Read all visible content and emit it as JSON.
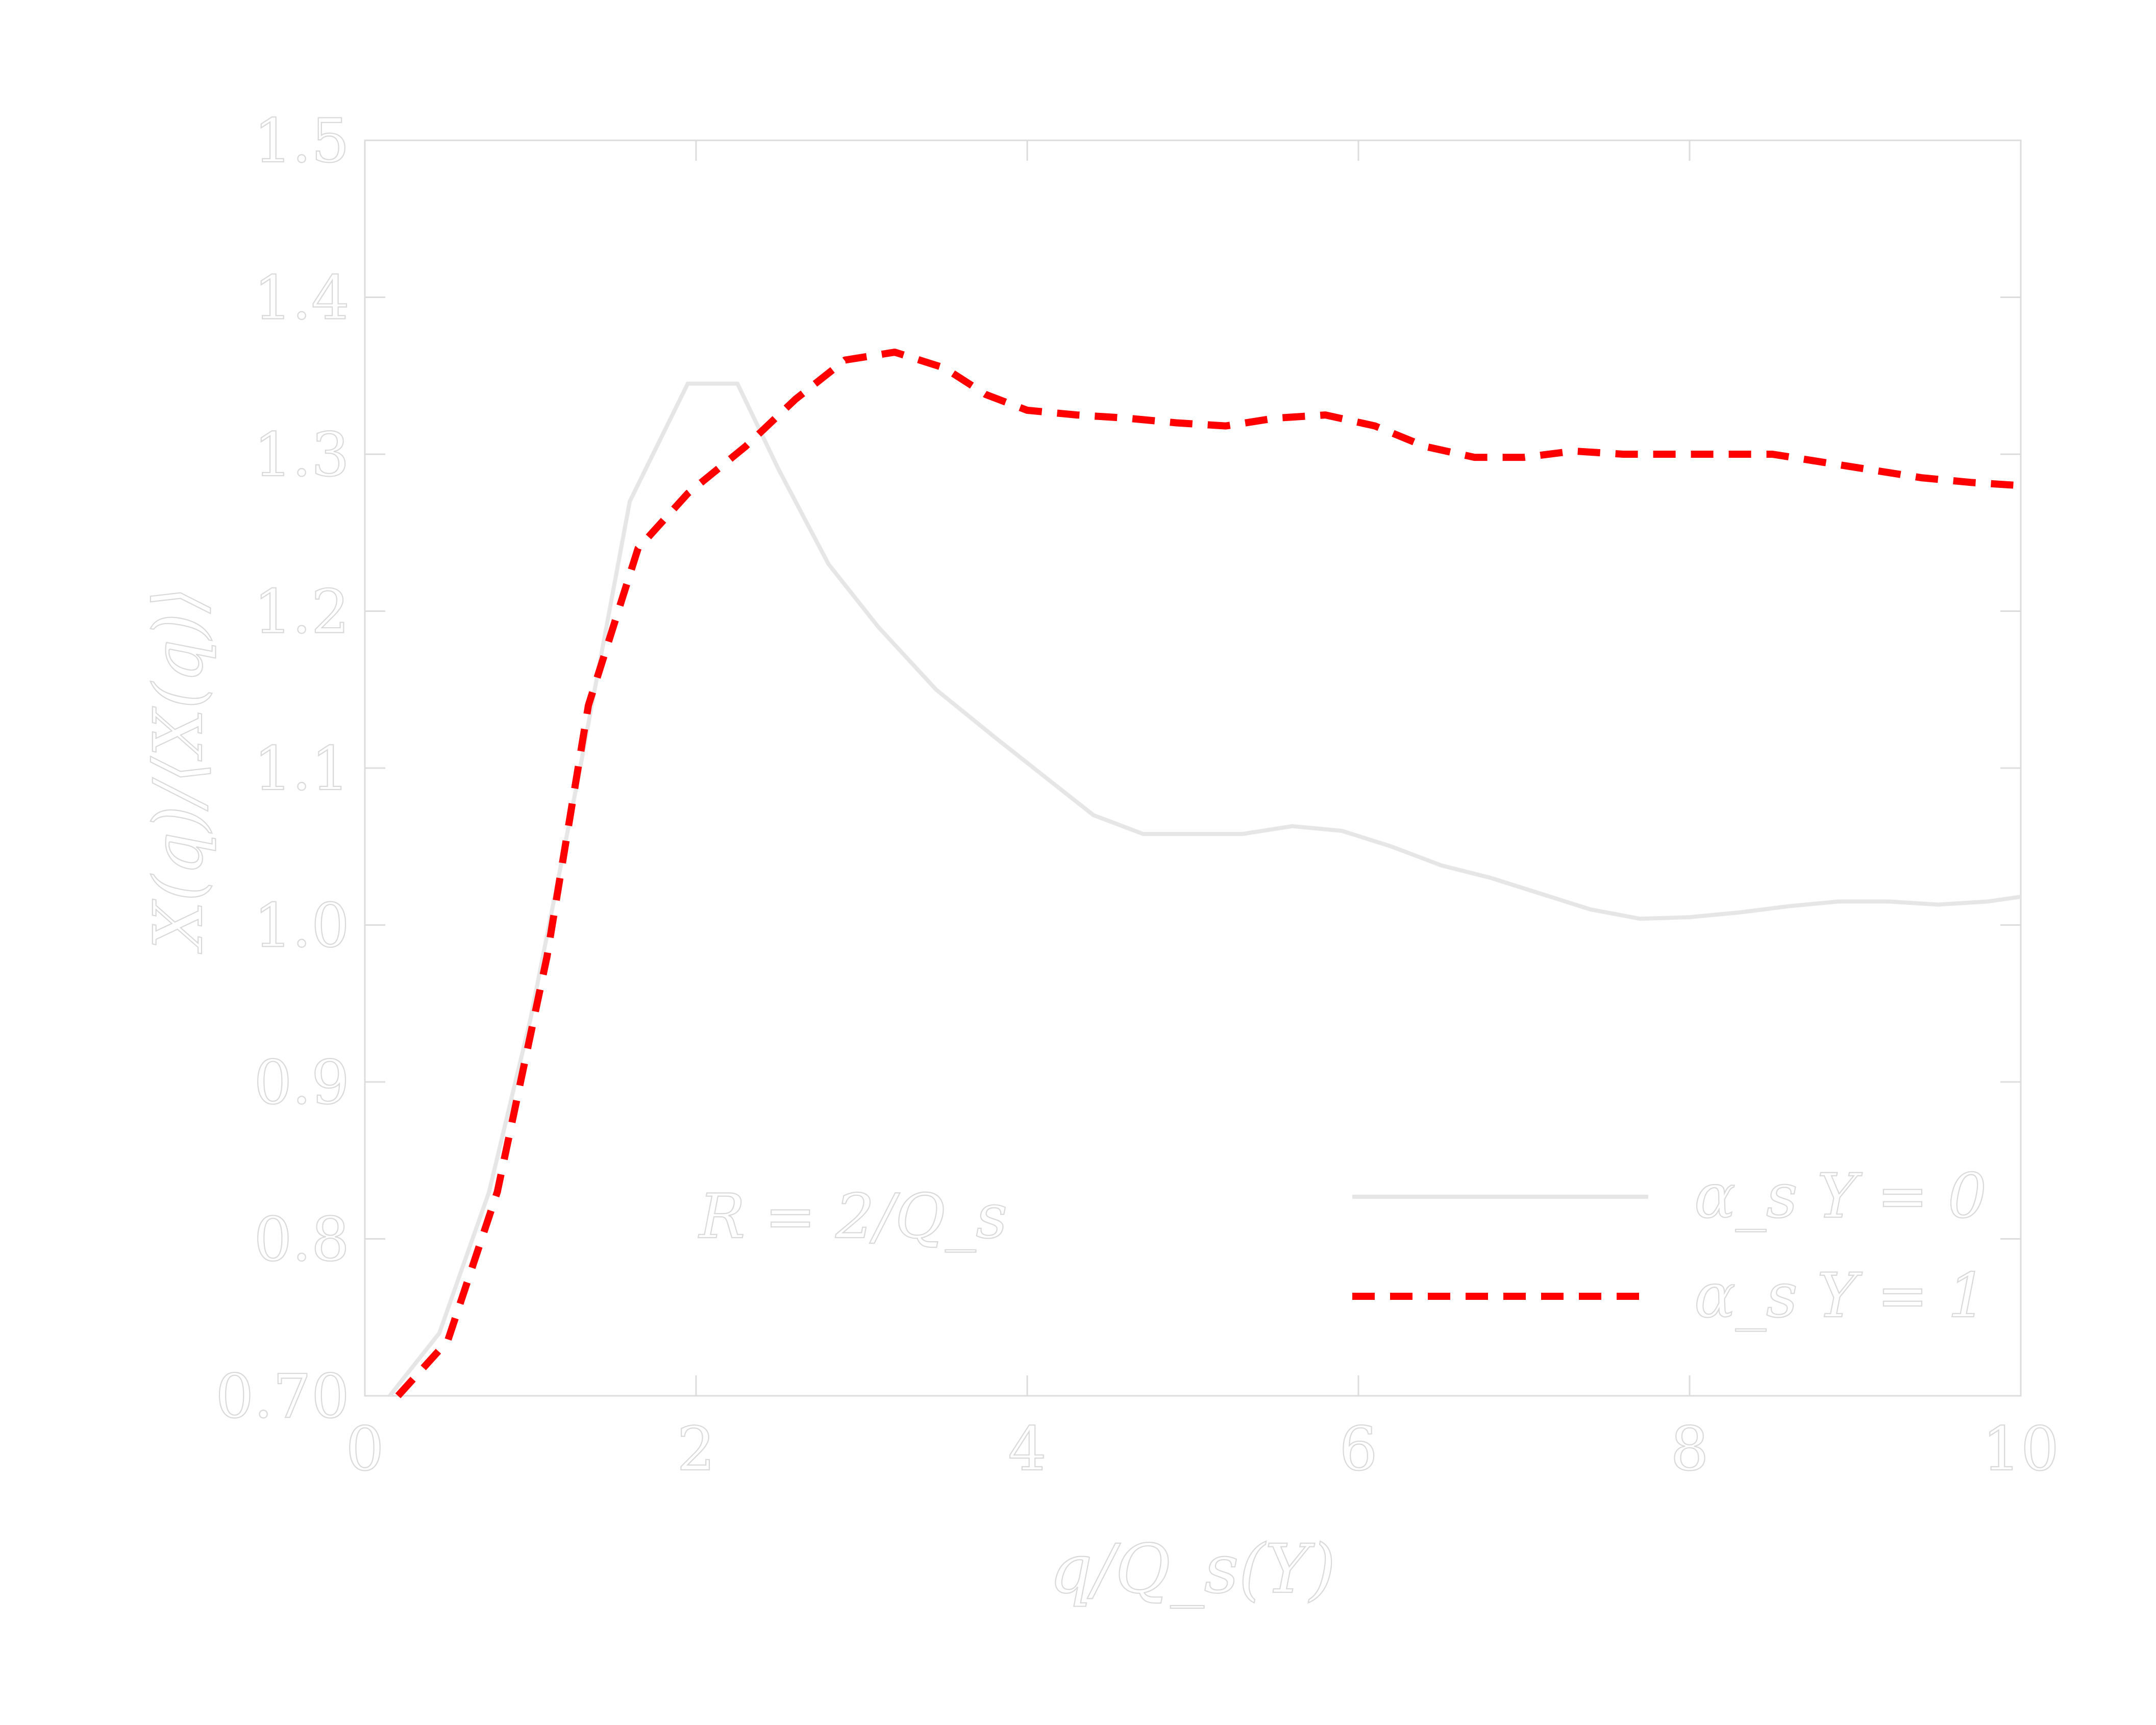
{
  "chart_data": {
    "type": "line",
    "xlabel": "q/Q_s(Y)",
    "ylabel": "X(q)/⟨X(q)⟩",
    "xlim": [
      0,
      10
    ],
    "ylim": [
      0.7,
      1.5
    ],
    "xticks": [
      "0",
      "2",
      "4",
      "6",
      "8",
      "10"
    ],
    "yticks": [
      "0.70",
      "0.8",
      "0.9",
      "1.0",
      "1.1",
      "1.2",
      "1.3",
      "1.4",
      "1.5"
    ],
    "annotation": "R = 2/Q_s",
    "legend_position": "lower-right",
    "grid": false,
    "series": [
      {
        "name": "α_s Y = 0",
        "color": "#e6e6e6",
        "style": "solid",
        "x": [
          0.15,
          0.45,
          0.75,
          1.0,
          1.3,
          1.6,
          1.95,
          2.25,
          2.5,
          2.8,
          3.1,
          3.45,
          3.8,
          4.1,
          4.4,
          4.7,
          5.0,
          5.3,
          5.6,
          5.9,
          6.2,
          6.5,
          6.8,
          7.1,
          7.4,
          7.7,
          8.0,
          8.3,
          8.6,
          8.9,
          9.2,
          9.5,
          9.8,
          10.0
        ],
        "y": [
          0.7,
          0.74,
          0.83,
          0.94,
          1.1,
          1.27,
          1.345,
          1.345,
          1.29,
          1.23,
          1.19,
          1.15,
          1.12,
          1.095,
          1.07,
          1.058,
          1.058,
          1.058,
          1.063,
          1.06,
          1.05,
          1.038,
          1.03,
          1.02,
          1.01,
          1.004,
          1.005,
          1.008,
          1.012,
          1.015,
          1.015,
          1.013,
          1.015,
          1.018
        ]
      },
      {
        "name": "α_s Y = 1",
        "color": "#ff0000",
        "style": "dashed",
        "x": [
          0.2,
          0.5,
          0.8,
          1.1,
          1.35,
          1.65,
          1.95,
          2.3,
          2.6,
          2.9,
          3.2,
          3.5,
          3.75,
          4.0,
          4.3,
          4.6,
          4.9,
          5.2,
          5.5,
          5.8,
          6.1,
          6.4,
          6.7,
          7.0,
          7.3,
          7.6,
          7.9,
          8.2,
          8.5,
          8.8,
          9.1,
          9.4,
          9.7,
          10.0
        ],
        "y": [
          0.7,
          0.735,
          0.83,
          0.98,
          1.14,
          1.24,
          1.275,
          1.305,
          1.335,
          1.36,
          1.365,
          1.355,
          1.338,
          1.328,
          1.325,
          1.323,
          1.32,
          1.318,
          1.323,
          1.325,
          1.318,
          1.305,
          1.298,
          1.298,
          1.302,
          1.3,
          1.3,
          1.3,
          1.3,
          1.295,
          1.29,
          1.285,
          1.282,
          1.28
        ]
      }
    ]
  }
}
